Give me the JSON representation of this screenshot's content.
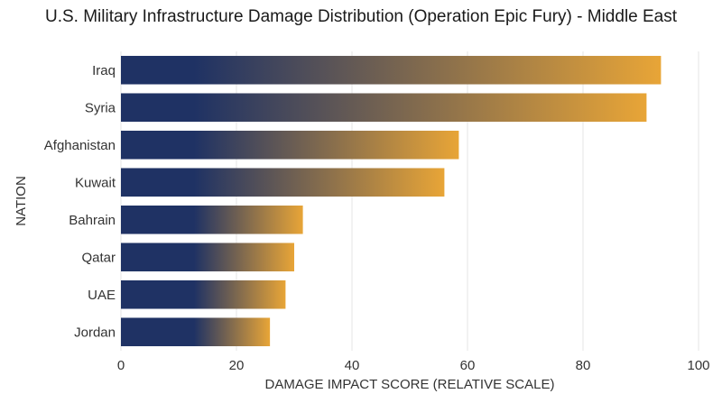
{
  "chart_data": {
    "type": "bar",
    "orientation": "horizontal",
    "title": "U.S. Military Infrastructure Damage Distribution (Operation Epic Fury) - Middle East",
    "xlabel": "DAMAGE IMPACT SCORE (RELATIVE SCALE)",
    "ylabel": "NATION",
    "categories": [
      "Iraq",
      "Syria",
      "Afghanistan",
      "Kuwait",
      "Bahrain",
      "Qatar",
      "UAE",
      "Jordan"
    ],
    "values": [
      93.5,
      91,
      58.5,
      56,
      31.5,
      30,
      28.5,
      25.8
    ],
    "xlim": [
      0,
      100
    ],
    "xticks": [
      0,
      20,
      40,
      60,
      80,
      100
    ],
    "grid": true,
    "legend": "none",
    "colors": {
      "gradient_start": "#1f3264",
      "gradient_end": "#e8a537",
      "grid": "#e6e6e6",
      "text": "#333333"
    }
  }
}
